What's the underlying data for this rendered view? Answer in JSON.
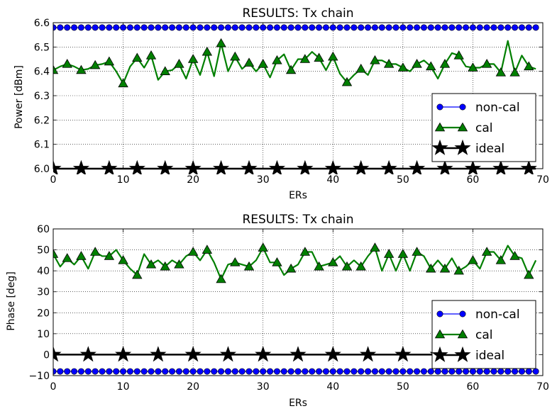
{
  "chart_data": [
    {
      "type": "line",
      "title": "RESULTS: Tx chain",
      "xlabel": "ERs",
      "ylabel": "Power [dBm]",
      "xlim": [
        0,
        70
      ],
      "ylim": [
        6.0,
        6.6
      ],
      "xticks": [
        "0",
        "10",
        "20",
        "30",
        "40",
        "50",
        "60",
        "70"
      ],
      "yticks": [
        "6.0",
        "6.1",
        "6.2",
        "6.3",
        "6.4",
        "6.5",
        "6.6"
      ],
      "grid": true,
      "legend_position": "lower-right",
      "series": [
        {
          "name": "non-cal",
          "color": "#0000ff",
          "marker": "circle",
          "markevery": 1,
          "values": [
            6.58,
            6.58,
            6.58,
            6.58,
            6.58,
            6.58,
            6.58,
            6.58,
            6.58,
            6.58,
            6.58,
            6.58,
            6.58,
            6.58,
            6.58,
            6.58,
            6.58,
            6.58,
            6.58,
            6.58,
            6.58,
            6.58,
            6.58,
            6.58,
            6.58,
            6.58,
            6.58,
            6.58,
            6.58,
            6.58,
            6.58,
            6.58,
            6.58,
            6.58,
            6.58,
            6.58,
            6.58,
            6.58,
            6.58,
            6.58,
            6.58,
            6.58,
            6.58,
            6.58,
            6.58,
            6.58,
            6.58,
            6.58,
            6.58,
            6.58,
            6.58,
            6.58,
            6.58,
            6.58,
            6.58,
            6.58,
            6.58,
            6.58,
            6.58,
            6.58,
            6.58,
            6.58,
            6.58,
            6.58,
            6.58,
            6.58,
            6.58,
            6.58,
            6.58,
            6.58
          ]
        },
        {
          "name": "cal",
          "color": "#007f00",
          "marker": "triangle",
          "markevery": 2,
          "values": [
            6.405,
            6.42,
            6.43,
            6.42,
            6.405,
            6.41,
            6.425,
            6.43,
            6.44,
            6.4,
            6.35,
            6.42,
            6.455,
            6.415,
            6.465,
            6.365,
            6.4,
            6.405,
            6.43,
            6.37,
            6.45,
            6.385,
            6.48,
            6.38,
            6.515,
            6.4,
            6.46,
            6.41,
            6.435,
            6.4,
            6.43,
            6.375,
            6.445,
            6.47,
            6.405,
            6.45,
            6.45,
            6.48,
            6.455,
            6.405,
            6.46,
            6.39,
            6.355,
            6.385,
            6.41,
            6.385,
            6.445,
            6.445,
            6.43,
            6.43,
            6.415,
            6.4,
            6.43,
            6.445,
            6.42,
            6.37,
            6.43,
            6.475,
            6.465,
            6.42,
            6.415,
            6.415,
            6.43,
            6.43,
            6.395,
            6.525,
            6.395,
            6.465,
            6.42,
            6.41
          ]
        },
        {
          "name": "ideal",
          "color": "#000000",
          "marker": "star",
          "markevery": 4,
          "values": [
            6.0,
            6.0,
            6.0,
            6.0,
            6.0,
            6.0,
            6.0,
            6.0,
            6.0,
            6.0,
            6.0,
            6.0,
            6.0,
            6.0,
            6.0,
            6.0,
            6.0,
            6.0,
            6.0,
            6.0,
            6.0,
            6.0,
            6.0,
            6.0,
            6.0,
            6.0,
            6.0,
            6.0,
            6.0,
            6.0,
            6.0,
            6.0,
            6.0,
            6.0,
            6.0,
            6.0,
            6.0,
            6.0,
            6.0,
            6.0,
            6.0,
            6.0,
            6.0,
            6.0,
            6.0,
            6.0,
            6.0,
            6.0,
            6.0,
            6.0,
            6.0,
            6.0,
            6.0,
            6.0,
            6.0,
            6.0,
            6.0,
            6.0,
            6.0,
            6.0,
            6.0,
            6.0,
            6.0,
            6.0,
            6.0,
            6.0,
            6.0,
            6.0,
            6.0,
            6.0
          ]
        }
      ]
    },
    {
      "type": "line",
      "title": "RESULTS: Tx chain",
      "xlabel": "ERs",
      "ylabel": "Phase [deg]",
      "xlim": [
        0,
        70
      ],
      "ylim": [
        -10,
        60
      ],
      "xticks": [
        "0",
        "10",
        "20",
        "30",
        "40",
        "50",
        "60",
        "70"
      ],
      "yticks": [
        "−10",
        "0",
        "10",
        "20",
        "30",
        "40",
        "50",
        "60"
      ],
      "grid": true,
      "legend_position": "lower-right",
      "series": [
        {
          "name": "non-cal",
          "color": "#0000ff",
          "marker": "circle",
          "markevery": 1,
          "values": [
            -8,
            -8,
            -8,
            -8,
            -8,
            -8,
            -8,
            -8,
            -8,
            -8,
            -8,
            -8,
            -8,
            -8,
            -8,
            -8,
            -8,
            -8,
            -8,
            -8,
            -8,
            -8,
            -8,
            -8,
            -8,
            -8,
            -8,
            -8,
            -8,
            -8,
            -8,
            -8,
            -8,
            -8,
            -8,
            -8,
            -8,
            -8,
            -8,
            -8,
            -8,
            -8,
            -8,
            -8,
            -8,
            -8,
            -8,
            -8,
            -8,
            -8,
            -8,
            -8,
            -8,
            -8,
            -8,
            -8,
            -8,
            -8,
            -8,
            -8,
            -8,
            -8,
            -8,
            -8,
            -8,
            -8,
            -8,
            -8,
            -8,
            -8
          ]
        },
        {
          "name": "cal",
          "color": "#007f00",
          "marker": "triangle",
          "markevery": 2,
          "values": [
            48,
            42,
            46,
            43,
            47,
            41,
            49,
            47,
            47,
            50,
            45,
            41,
            38,
            48,
            43,
            45,
            42,
            45,
            43,
            47,
            49,
            45,
            50,
            44,
            36,
            43,
            44,
            43,
            42,
            45,
            51,
            44,
            44,
            38,
            41,
            43,
            49,
            49,
            42,
            43,
            44,
            47,
            42,
            45,
            42,
            47,
            51,
            40,
            48,
            40,
            48,
            40,
            49,
            47,
            41,
            45,
            41,
            46,
            40,
            42,
            45,
            41,
            49,
            49,
            45,
            52,
            47,
            46,
            38,
            45
          ]
        },
        {
          "name": "ideal",
          "color": "#000000",
          "marker": "star",
          "markevery": 5,
          "values": [
            0,
            0,
            0,
            0,
            0,
            0,
            0,
            0,
            0,
            0,
            0,
            0,
            0,
            0,
            0,
            0,
            0,
            0,
            0,
            0,
            0,
            0,
            0,
            0,
            0,
            0,
            0,
            0,
            0,
            0,
            0,
            0,
            0,
            0,
            0,
            0,
            0,
            0,
            0,
            0,
            0,
            0,
            0,
            0,
            0,
            0,
            0,
            0,
            0,
            0,
            0,
            0,
            0,
            0,
            0,
            0,
            0,
            0,
            0,
            0,
            0,
            0,
            0,
            0,
            0,
            0,
            0,
            0,
            0,
            0
          ]
        }
      ]
    }
  ]
}
